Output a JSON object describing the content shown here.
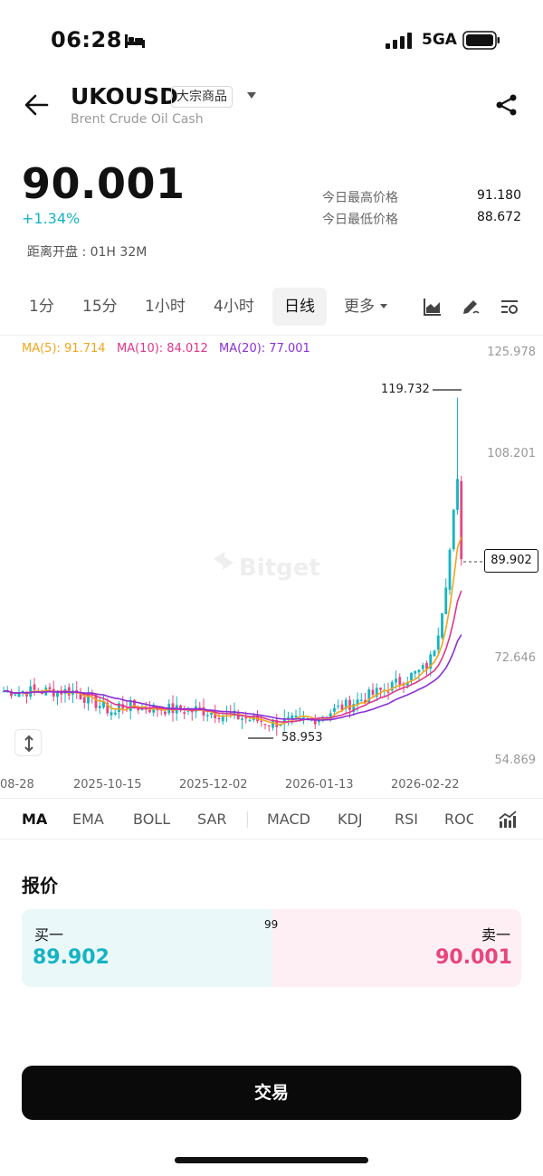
{
  "status_bar": {
    "time": "06:28",
    "network": "5GA"
  },
  "header": {
    "symbol": "UKOUSD",
    "category_tag": "大宗商品",
    "full_name": "Brent Crude Oil Cash"
  },
  "price": {
    "last": "90.001",
    "change_pct": "+1.34%",
    "countdown": "距离开盘 : 01H 32M",
    "high_label": "今日最高价格",
    "high_value": "91.180",
    "low_label": "今日最低价格",
    "low_value": "88.672"
  },
  "intervals": {
    "items": [
      "1分",
      "15分",
      "1小时",
      "4小时",
      "日线",
      "更多"
    ],
    "active": "日线"
  },
  "tools": [
    "chart-type-icon",
    "draw-icon",
    "settings-icon"
  ],
  "ma_legend": {
    "ma5": "MA(5): 91.714",
    "ma10": "MA(10): 84.012",
    "ma20": "MA(20): 77.001"
  },
  "colors": {
    "up": "#15b3c4",
    "down": "#e8457e",
    "ma5": "#f2a51c",
    "ma10": "#e0348c",
    "ma20": "#8b2fd6"
  },
  "chart_data": {
    "type": "candlestick",
    "title": "UKOUSD 日线",
    "y_ticks": [
      "125.978",
      "108.201",
      "72.646",
      "54.869"
    ],
    "ylim": [
      54.869,
      125.978
    ],
    "x_ticks": [
      "08-28",
      "2025-10-15",
      "2025-12-02",
      "2026-01-13",
      "2026-02-22"
    ],
    "current_price": "89.902",
    "max_label": "119.732",
    "min_label": "58.953",
    "watermark": "Bitget",
    "series": [
      {
        "name": "MA(5)",
        "last": 91.714
      },
      {
        "name": "MA(10)",
        "last": 84.012
      },
      {
        "name": "MA(20)",
        "last": 77.001
      }
    ]
  },
  "indicators": {
    "items": [
      "MA",
      "EMA",
      "BOLL",
      "SAR",
      "MACD",
      "KDJ",
      "RSI",
      "ROC"
    ],
    "active": "MA"
  },
  "quote": {
    "title": "报价",
    "bid_label": "买一",
    "ask_label": "卖一",
    "bid_price": "89.902",
    "ask_price": "90.001",
    "spread_ratio": "99"
  },
  "trade_button": "交易"
}
